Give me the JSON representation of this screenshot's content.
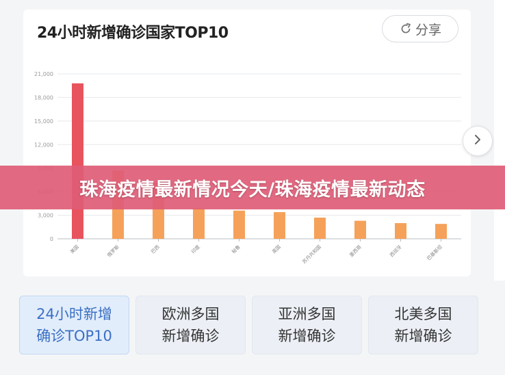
{
  "card": {
    "title": "24小时新增确诊国家TOP10",
    "share_label": "分享"
  },
  "banner": {
    "text": "珠海疫情最新情况今天/珠海疫情最新动态"
  },
  "tabs": [
    {
      "line1": "24小时新增",
      "line2": "确诊TOP10",
      "active": true
    },
    {
      "line1": "欧洲多国",
      "line2": "新增确诊",
      "active": false
    },
    {
      "line1": "亚洲多国",
      "line2": "新增确诊",
      "active": false
    },
    {
      "line1": "北美多国",
      "line2": "新增确诊",
      "active": false
    }
  ],
  "colors": {
    "bar_top": "#e8545e",
    "bar_other": "#f5a15a",
    "active_tab_text": "#3a6fc4",
    "banner": "#de5c76"
  },
  "chart_data": {
    "type": "bar",
    "title": "24小时新增确诊国家TOP10",
    "categories": [
      "美国",
      "俄罗斯",
      "巴西",
      "印度",
      "秘鲁",
      "英国",
      "苏丹共和国",
      "墨西哥",
      "西班牙",
      "巴基斯坦"
    ],
    "values": [
      19800,
      8700,
      7200,
      3900,
      3600,
      3400,
      2700,
      2300,
      2000,
      1900
    ],
    "yticks": [
      0,
      3000,
      6000,
      9000,
      12000,
      15000,
      18000,
      21000
    ],
    "ytick_labels": [
      "0",
      "3,000",
      "6,000",
      "9,000",
      "12,000",
      "15,000",
      "18,000",
      "21,000"
    ],
    "ylim": [
      0,
      21000
    ],
    "grid": true,
    "legend": "none"
  }
}
